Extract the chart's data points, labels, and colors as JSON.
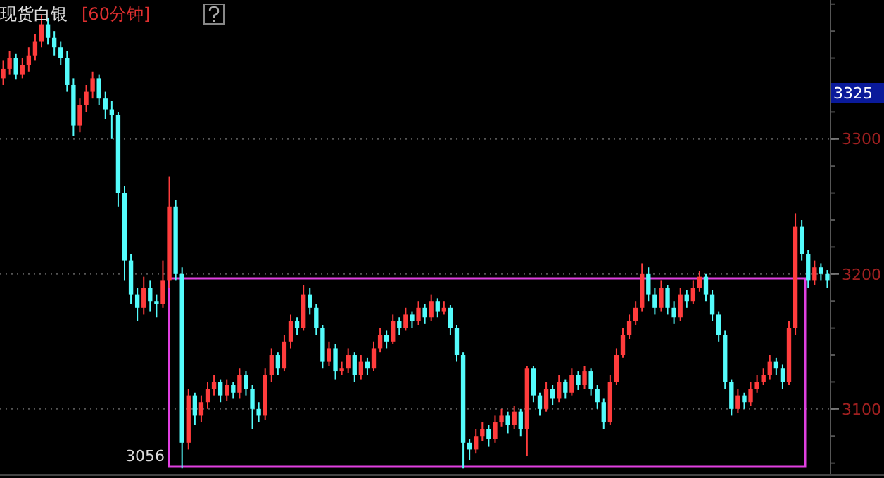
{
  "chart_data": {
    "type": "candlestick",
    "title": "现货白银",
    "subtitle": "[60分钟]",
    "categories": [
      null,
      null,
      null,
      null,
      null,
      null,
      null,
      null,
      null,
      null,
      null,
      null,
      null,
      null,
      null,
      null,
      null,
      null,
      null,
      null,
      null,
      null,
      null,
      null,
      null,
      null,
      null,
      null,
      null,
      null,
      null,
      null,
      null,
      null,
      null,
      null,
      null,
      null,
      null,
      null,
      null,
      null,
      null,
      null,
      null,
      null,
      null,
      null,
      null,
      null,
      null,
      null,
      null,
      null,
      null,
      null,
      null,
      null,
      null,
      null,
      null,
      null,
      null,
      null,
      null,
      null,
      null,
      null,
      null,
      null,
      null,
      null,
      null,
      null,
      null,
      null,
      null,
      null,
      null,
      null,
      null,
      null,
      null,
      null,
      null,
      null,
      null,
      null,
      null,
      null,
      null,
      null,
      null,
      null,
      null,
      null,
      null,
      null,
      null,
      null,
      null,
      null,
      null,
      null,
      null,
      null,
      null,
      null,
      null,
      null,
      null,
      null,
      null,
      null,
      null,
      null,
      null,
      null,
      null,
      null,
      null,
      null,
      null,
      null,
      null,
      null,
      null,
      null,
      null,
      null
    ],
    "ohlc": [
      [
        3345,
        3358,
        3340,
        3352
      ],
      [
        3352,
        3365,
        3348,
        3360
      ],
      [
        3360,
        3363,
        3344,
        3348
      ],
      [
        3348,
        3360,
        3345,
        3355
      ],
      [
        3355,
        3368,
        3350,
        3362
      ],
      [
        3362,
        3378,
        3358,
        3372
      ],
      [
        3372,
        3392,
        3368,
        3385
      ],
      [
        3385,
        3390,
        3370,
        3375
      ],
      [
        3375,
        3380,
        3362,
        3368
      ],
      [
        3368,
        3372,
        3355,
        3360
      ],
      [
        3360,
        3365,
        3335,
        3340
      ],
      [
        3340,
        3345,
        3302,
        3310
      ],
      [
        3310,
        3330,
        3305,
        3325
      ],
      [
        3325,
        3340,
        3320,
        3335
      ],
      [
        3335,
        3350,
        3330,
        3345
      ],
      [
        3345,
        3348,
        3325,
        3330
      ],
      [
        3330,
        3335,
        3315,
        3322
      ],
      [
        3322,
        3328,
        3300,
        3318
      ],
      [
        3318,
        3320,
        3250,
        3260
      ],
      [
        3260,
        3265,
        3195,
        3210
      ],
      [
        3210,
        3215,
        3178,
        3185
      ],
      [
        3185,
        3190,
        3165,
        3175
      ],
      [
        3175,
        3198,
        3170,
        3190
      ],
      [
        3190,
        3195,
        3172,
        3180
      ],
      [
        3180,
        3185,
        3168,
        3178
      ],
      [
        3178,
        3210,
        3175,
        3195
      ],
      [
        3195,
        3272,
        3190,
        3250
      ],
      [
        3250,
        3255,
        3195,
        3200
      ],
      [
        3200,
        3205,
        3056,
        3075
      ],
      [
        3075,
        3115,
        3070,
        3110
      ],
      [
        3110,
        3112,
        3088,
        3095
      ],
      [
        3095,
        3110,
        3090,
        3105
      ],
      [
        3105,
        3120,
        3100,
        3115
      ],
      [
        3115,
        3125,
        3110,
        3120
      ],
      [
        3120,
        3122,
        3105,
        3110
      ],
      [
        3110,
        3122,
        3106,
        3118
      ],
      [
        3118,
        3120,
        3108,
        3112
      ],
      [
        3112,
        3130,
        3108,
        3125
      ],
      [
        3125,
        3128,
        3110,
        3115
      ],
      [
        3115,
        3118,
        3085,
        3100
      ],
      [
        3100,
        3105,
        3090,
        3095
      ],
      [
        3095,
        3130,
        3092,
        3125
      ],
      [
        3125,
        3145,
        3120,
        3140
      ],
      [
        3140,
        3142,
        3125,
        3130
      ],
      [
        3130,
        3155,
        3128,
        3150
      ],
      [
        3150,
        3170,
        3145,
        3165
      ],
      [
        3165,
        3168,
        3155,
        3160
      ],
      [
        3160,
        3192,
        3158,
        3185
      ],
      [
        3185,
        3190,
        3170,
        3175
      ],
      [
        3175,
        3178,
        3155,
        3160
      ],
      [
        3160,
        3162,
        3130,
        3135
      ],
      [
        3135,
        3150,
        3132,
        3145
      ],
      [
        3145,
        3148,
        3122,
        3128
      ],
      [
        3128,
        3135,
        3125,
        3130
      ],
      [
        3130,
        3145,
        3127,
        3140
      ],
      [
        3140,
        3142,
        3120,
        3125
      ],
      [
        3125,
        3140,
        3122,
        3135
      ],
      [
        3135,
        3138,
        3125,
        3130
      ],
      [
        3130,
        3150,
        3128,
        3145
      ],
      [
        3145,
        3160,
        3142,
        3155
      ],
      [
        3155,
        3158,
        3145,
        3150
      ],
      [
        3150,
        3170,
        3148,
        3165
      ],
      [
        3165,
        3168,
        3155,
        3160
      ],
      [
        3160,
        3175,
        3158,
        3170
      ],
      [
        3170,
        3172,
        3160,
        3165
      ],
      [
        3165,
        3180,
        3162,
        3175
      ],
      [
        3175,
        3178,
        3163,
        3168
      ],
      [
        3168,
        3185,
        3165,
        3180
      ],
      [
        3180,
        3182,
        3168,
        3172
      ],
      [
        3172,
        3180,
        3170,
        3175
      ],
      [
        3175,
        3177,
        3155,
        3160
      ],
      [
        3160,
        3162,
        3135,
        3140
      ],
      [
        3140,
        3142,
        3056,
        3075
      ],
      [
        3075,
        3078,
        3062,
        3070
      ],
      [
        3070,
        3085,
        3067,
        3080
      ],
      [
        3080,
        3090,
        3076,
        3085
      ],
      [
        3085,
        3088,
        3072,
        3078
      ],
      [
        3078,
        3095,
        3075,
        3090
      ],
      [
        3090,
        3100,
        3087,
        3095
      ],
      [
        3095,
        3098,
        3082,
        3088
      ],
      [
        3088,
        3102,
        3085,
        3098
      ],
      [
        3098,
        3100,
        3080,
        3085
      ],
      [
        3085,
        3132,
        3065,
        3130
      ],
      [
        3130,
        3132,
        3105,
        3110
      ],
      [
        3110,
        3112,
        3095,
        3100
      ],
      [
        3100,
        3120,
        3098,
        3115
      ],
      [
        3115,
        3118,
        3103,
        3108
      ],
      [
        3108,
        3125,
        3105,
        3120
      ],
      [
        3120,
        3122,
        3108,
        3112
      ],
      [
        3112,
        3130,
        3110,
        3125
      ],
      [
        3125,
        3128,
        3114,
        3118
      ],
      [
        3118,
        3132,
        3115,
        3128
      ],
      [
        3128,
        3130,
        3110,
        3115
      ],
      [
        3115,
        3118,
        3100,
        3105
      ],
      [
        3105,
        3108,
        3085,
        3090
      ],
      [
        3090,
        3125,
        3088,
        3120
      ],
      [
        3120,
        3145,
        3118,
        3140
      ],
      [
        3140,
        3160,
        3138,
        3155
      ],
      [
        3155,
        3170,
        3152,
        3165
      ],
      [
        3165,
        3180,
        3162,
        3175
      ],
      [
        3175,
        3208,
        3172,
        3200
      ],
      [
        3200,
        3205,
        3180,
        3185
      ],
      [
        3185,
        3190,
        3170,
        3175
      ],
      [
        3175,
        3195,
        3172,
        3190
      ],
      [
        3190,
        3192,
        3170,
        3175
      ],
      [
        3175,
        3180,
        3163,
        3168
      ],
      [
        3168,
        3190,
        3165,
        3185
      ],
      [
        3185,
        3188,
        3175,
        3180
      ],
      [
        3180,
        3195,
        3178,
        3190
      ],
      [
        3190,
        3202,
        3187,
        3198
      ],
      [
        3198,
        3200,
        3180,
        3185
      ],
      [
        3185,
        3188,
        3165,
        3170
      ],
      [
        3170,
        3172,
        3150,
        3155
      ],
      [
        3155,
        3158,
        3115,
        3120
      ],
      [
        3120,
        3122,
        3095,
        3100
      ],
      [
        3100,
        3115,
        3097,
        3110
      ],
      [
        3110,
        3112,
        3100,
        3105
      ],
      [
        3105,
        3120,
        3102,
        3115
      ],
      [
        3115,
        3125,
        3112,
        3120
      ],
      [
        3120,
        3130,
        3118,
        3125
      ],
      [
        3125,
        3140,
        3122,
        3135
      ],
      [
        3135,
        3138,
        3125,
        3130
      ],
      [
        3130,
        3133,
        3115,
        3120
      ],
      [
        3120,
        3165,
        3118,
        3160
      ],
      [
        3160,
        3245,
        3155,
        3235
      ],
      [
        3235,
        3240,
        3210,
        3215
      ],
      [
        3215,
        3218,
        3190,
        3195
      ],
      [
        3195,
        3210,
        3192,
        3205
      ],
      [
        3205,
        3208,
        3195,
        3200
      ],
      [
        3200,
        3203,
        3190,
        3195
      ]
    ],
    "colors": [
      "#ff3c3c",
      "#ff3c3c",
      "#54fcfc",
      "#ff3c3c",
      "#ff3c3c",
      "#ff3c3c",
      "#ff3c3c",
      "#54fcfc",
      "#54fcfc",
      "#54fcfc",
      "#54fcfc",
      "#54fcfc",
      "#ff3c3c",
      "#ff3c3c",
      "#ff3c3c",
      "#54fcfc",
      "#54fcfc",
      "#54fcfc",
      "#54fcfc",
      "#54fcfc",
      "#54fcfc",
      "#54fcfc",
      "#ff3c3c",
      "#54fcfc",
      "#54fcfc",
      "#ff3c3c",
      "#ff3c3c",
      "#54fcfc",
      "#54fcfc",
      "#ff3c3c",
      "#54fcfc",
      "#ff3c3c",
      "#ff3c3c",
      "#ff3c3c",
      "#54fcfc",
      "#ff3c3c",
      "#54fcfc",
      "#ff3c3c",
      "#54fcfc",
      "#54fcfc",
      "#54fcfc",
      "#ff3c3c",
      "#ff3c3c",
      "#54fcfc",
      "#ff3c3c",
      "#ff3c3c",
      "#54fcfc",
      "#ff3c3c",
      "#54fcfc",
      "#54fcfc",
      "#54fcfc",
      "#ff3c3c",
      "#54fcfc",
      "#ff3c3c",
      "#ff3c3c",
      "#54fcfc",
      "#ff3c3c",
      "#54fcfc",
      "#ff3c3c",
      "#ff3c3c",
      "#54fcfc",
      "#ff3c3c",
      "#54fcfc",
      "#ff3c3c",
      "#54fcfc",
      "#ff3c3c",
      "#54fcfc",
      "#ff3c3c",
      "#54fcfc",
      "#ff3c3c",
      "#54fcfc",
      "#54fcfc",
      "#54fcfc",
      "#54fcfc",
      "#ff3c3c",
      "#ff3c3c",
      "#54fcfc",
      "#ff3c3c",
      "#ff3c3c",
      "#54fcfc",
      "#ff3c3c",
      "#54fcfc",
      "#ff3c3c",
      "#54fcfc",
      "#54fcfc",
      "#ff3c3c",
      "#54fcfc",
      "#ff3c3c",
      "#54fcfc",
      "#ff3c3c",
      "#54fcfc",
      "#ff3c3c",
      "#54fcfc",
      "#54fcfc",
      "#54fcfc",
      "#ff3c3c",
      "#ff3c3c",
      "#ff3c3c",
      "#ff3c3c",
      "#ff3c3c",
      "#ff3c3c",
      "#54fcfc",
      "#54fcfc",
      "#ff3c3c",
      "#54fcfc",
      "#54fcfc",
      "#ff3c3c",
      "#54fcfc",
      "#ff3c3c",
      "#ff3c3c",
      "#54fcfc",
      "#54fcfc",
      "#54fcfc",
      "#54fcfc",
      "#54fcfc",
      "#ff3c3c",
      "#54fcfc",
      "#ff3c3c",
      "#ff3c3c",
      "#ff3c3c",
      "#ff3c3c",
      "#54fcfc",
      "#54fcfc",
      "#ff3c3c",
      "#ff3c3c",
      "#54fcfc",
      "#54fcfc",
      "#ff3c3c",
      "#54fcfc",
      "#54fcfc"
    ],
    "ylim": [
      3052,
      3403
    ],
    "yticks": [
      3100,
      3200,
      3300
    ],
    "grid": "y",
    "annotations": [
      "3056",
      "3325"
    ]
  }
}
